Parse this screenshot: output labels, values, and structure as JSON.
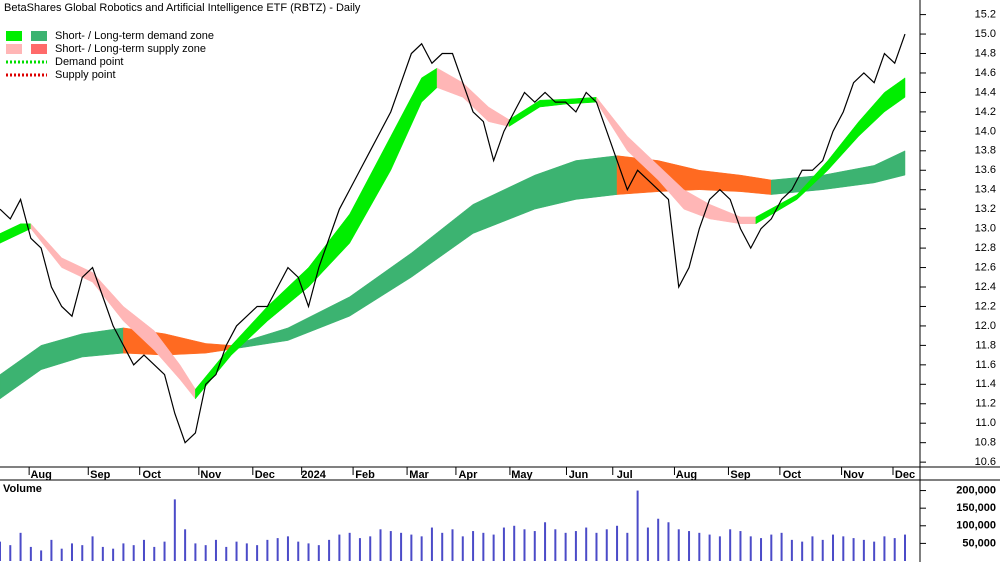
{
  "chart_data": [
    {
      "type": "line",
      "title": "BetaShares Global Robotics and Artificial Intelligence ETF (RBTZ) - Daily",
      "legend": [
        {
          "text": "Short- / Long-term demand zone",
          "colors": [
            "#00ee00",
            "#3cb371"
          ]
        },
        {
          "text": "Short- / Long-term supply zone",
          "colors": [
            "#ffb6b6",
            "#ff6a6a"
          ]
        },
        {
          "text": "Demand point",
          "colors": [
            "#00dd00"
          ]
        },
        {
          "text": "Supply point",
          "colors": [
            "#dd0000"
          ]
        }
      ],
      "xlim": [
        0,
        352
      ],
      "xticks": [
        {
          "value": 16,
          "label": "Aug"
        },
        {
          "value": 39,
          "label": "Sep"
        },
        {
          "value": 59,
          "label": "Oct"
        },
        {
          "value": 82,
          "label": "Nov"
        },
        {
          "value": 103,
          "label": "Dec"
        },
        {
          "value": 122,
          "label": "2024"
        },
        {
          "value": 142,
          "label": "Feb"
        },
        {
          "value": 163,
          "label": "Mar"
        },
        {
          "value": 182,
          "label": "Apr"
        },
        {
          "value": 203,
          "label": "May"
        },
        {
          "value": 225,
          "label": "Jun"
        },
        {
          "value": 243,
          "label": "Jul"
        },
        {
          "value": 267,
          "label": "Aug"
        },
        {
          "value": 288,
          "label": "Sep"
        },
        {
          "value": 308,
          "label": "Oct"
        },
        {
          "value": 332,
          "label": "Nov"
        },
        {
          "value": 352,
          "label": "Dec"
        }
      ],
      "ylim": [
        10.55,
        15.35
      ],
      "yticks": [
        10.6,
        10.8,
        {
          "value": 11,
          "label": "11.0"
        },
        11.2,
        11.4,
        11.6,
        11.8,
        {
          "value": 12,
          "label": "12.0"
        },
        12.2,
        12.4,
        12.6,
        12.8,
        {
          "value": 13,
          "label": "13.0"
        },
        13.2,
        13.4,
        13.6,
        13.8,
        {
          "value": 14,
          "label": "14.0"
        },
        14.2,
        14.4,
        14.6,
        14.8,
        {
          "value": 15,
          "label": "15.0"
        },
        15.2
      ],
      "bands": [
        {
          "color": "#3cb371",
          "x": [
            0,
            16,
            32,
            48
          ],
          "lower": [
            11.25,
            11.55,
            11.68,
            11.72
          ],
          "upper": [
            11.5,
            11.8,
            11.92,
            11.98
          ]
        },
        {
          "color": "#ff6a21",
          "x": [
            48,
            64,
            80,
            90
          ],
          "lower": [
            11.72,
            11.7,
            11.72,
            11.76
          ],
          "upper": [
            11.98,
            11.92,
            11.82,
            11.8
          ]
        },
        {
          "color": "#3cb371",
          "x": [
            90,
            112,
            136,
            160,
            184,
            208,
            224,
            240
          ],
          "lower": [
            11.76,
            11.85,
            12.1,
            12.5,
            12.95,
            13.2,
            13.3,
            13.35
          ],
          "upper": [
            11.8,
            11.98,
            12.3,
            12.75,
            13.25,
            13.55,
            13.7,
            13.75
          ]
        },
        {
          "color": "#ff6a21",
          "x": [
            240,
            256,
            272,
            288,
            300
          ],
          "lower": [
            13.35,
            13.38,
            13.4,
            13.38,
            13.35
          ],
          "upper": [
            13.75,
            13.7,
            13.6,
            13.55,
            13.5
          ]
        },
        {
          "color": "#3cb371",
          "x": [
            300,
            320,
            340,
            352
          ],
          "lower": [
            13.35,
            13.4,
            13.47,
            13.55
          ],
          "upper": [
            13.5,
            13.55,
            13.65,
            13.8
          ]
        },
        {
          "color": "#00ee00",
          "x": [
            0,
            8,
            12
          ],
          "lower": [
            12.85,
            12.95,
            13.0
          ],
          "upper": [
            12.95,
            13.05,
            13.05
          ]
        },
        {
          "color": "#ffb6b6",
          "x": [
            12,
            24,
            36,
            48,
            60,
            70,
            76
          ],
          "lower": [
            13.0,
            12.6,
            12.45,
            12.05,
            11.75,
            11.45,
            11.25
          ],
          "upper": [
            13.05,
            12.7,
            12.55,
            12.2,
            11.95,
            11.6,
            11.35
          ]
        },
        {
          "color": "#00ee00",
          "x": [
            76,
            90,
            104,
            120,
            136,
            152,
            164,
            170
          ],
          "lower": [
            11.25,
            11.7,
            12.05,
            12.4,
            12.85,
            13.6,
            14.3,
            14.45
          ],
          "upper": [
            11.35,
            11.8,
            12.2,
            12.6,
            13.15,
            13.95,
            14.55,
            14.65
          ]
        },
        {
          "color": "#ffb6b6",
          "x": [
            170,
            180,
            190,
            198
          ],
          "lower": [
            14.45,
            14.35,
            14.1,
            14.05
          ],
          "upper": [
            14.65,
            14.5,
            14.25,
            14.12
          ]
        },
        {
          "color": "#00ee00",
          "x": [
            198,
            210,
            220,
            232
          ],
          "lower": [
            14.05,
            14.25,
            14.28,
            14.3
          ],
          "upper": [
            14.12,
            14.32,
            14.33,
            14.35
          ]
        },
        {
          "color": "#ffb6b6",
          "x": [
            232,
            244,
            256,
            266,
            276,
            288,
            294
          ],
          "lower": [
            14.3,
            13.8,
            13.5,
            13.2,
            13.1,
            13.05,
            13.05
          ],
          "upper": [
            14.35,
            13.95,
            13.65,
            13.4,
            13.25,
            13.12,
            13.12
          ]
        },
        {
          "color": "#00ee00",
          "x": [
            294,
            310,
            322,
            334,
            344,
            352
          ],
          "lower": [
            13.05,
            13.3,
            13.6,
            13.95,
            14.2,
            14.35
          ],
          "upper": [
            13.12,
            13.35,
            13.7,
            14.1,
            14.4,
            14.55
          ]
        }
      ],
      "x": [
        0,
        4,
        8,
        12,
        16,
        20,
        24,
        28,
        32,
        36,
        40,
        44,
        48,
        52,
        56,
        60,
        64,
        68,
        72,
        76,
        80,
        84,
        88,
        92,
        96,
        100,
        104,
        108,
        112,
        116,
        120,
        124,
        128,
        132,
        136,
        140,
        144,
        148,
        152,
        156,
        160,
        164,
        168,
        172,
        176,
        180,
        184,
        188,
        192,
        196,
        200,
        204,
        208,
        212,
        216,
        220,
        224,
        228,
        232,
        236,
        240,
        244,
        248,
        252,
        256,
        260,
        264,
        268,
        272,
        276,
        280,
        284,
        288,
        292,
        296,
        300,
        304,
        308,
        312,
        316,
        320,
        324,
        328,
        332,
        336,
        340,
        344,
        348,
        352
      ],
      "series": [
        {
          "color": "#000000",
          "values": [
            13.2,
            13.1,
            13.3,
            12.9,
            12.8,
            12.4,
            12.2,
            12.1,
            12.5,
            12.6,
            12.3,
            12.0,
            11.8,
            11.6,
            11.7,
            11.6,
            11.5,
            11.1,
            10.8,
            10.9,
            11.4,
            11.5,
            11.8,
            12.0,
            12.1,
            12.2,
            12.2,
            12.4,
            12.6,
            12.5,
            12.2,
            12.6,
            12.9,
            13.2,
            13.4,
            13.6,
            13.8,
            14.0,
            14.2,
            14.5,
            14.8,
            14.9,
            14.7,
            14.8,
            14.8,
            14.5,
            14.2,
            14.1,
            13.7,
            14.0,
            14.2,
            14.4,
            14.3,
            14.4,
            14.3,
            14.3,
            14.2,
            14.4,
            14.3,
            14.0,
            13.7,
            13.4,
            13.6,
            13.5,
            13.4,
            13.3,
            12.4,
            12.6,
            13.0,
            13.3,
            13.4,
            13.3,
            13.0,
            12.8,
            13.0,
            13.1,
            13.3,
            13.4,
            13.6,
            13.6,
            13.7,
            14.0,
            14.2,
            14.5,
            14.6,
            14.5,
            14.8,
            14.7,
            15.0
          ]
        }
      ]
    },
    {
      "type": "bar",
      "title": "Volume",
      "color": "#4b4bc8",
      "xlim": [
        0,
        352
      ],
      "ylim": [
        0,
        230000
      ],
      "yticks": [
        {
          "value": 50000,
          "label": "50,000"
        },
        {
          "value": 100000,
          "label": "100,000"
        },
        {
          "value": 150000,
          "label": "150,000"
        },
        {
          "value": 200000,
          "label": "200,000"
        }
      ],
      "x": [
        0,
        4,
        8,
        12,
        16,
        20,
        24,
        28,
        32,
        36,
        40,
        44,
        48,
        52,
        56,
        60,
        64,
        68,
        72,
        76,
        80,
        84,
        88,
        92,
        96,
        100,
        104,
        108,
        112,
        116,
        120,
        124,
        128,
        132,
        136,
        140,
        144,
        148,
        152,
        156,
        160,
        164,
        168,
        172,
        176,
        180,
        184,
        188,
        192,
        196,
        200,
        204,
        208,
        212,
        216,
        220,
        224,
        228,
        232,
        236,
        240,
        244,
        248,
        252,
        256,
        260,
        264,
        268,
        272,
        276,
        280,
        284,
        288,
        292,
        296,
        300,
        304,
        308,
        312,
        316,
        320,
        324,
        328,
        332,
        336,
        340,
        344,
        348,
        352
      ],
      "values": [
        55000,
        45000,
        80000,
        40000,
        30000,
        60000,
        35000,
        50000,
        45000,
        70000,
        40000,
        35000,
        50000,
        45000,
        60000,
        40000,
        55000,
        175000,
        90000,
        50000,
        45000,
        60000,
        40000,
        55000,
        50000,
        45000,
        60000,
        65000,
        70000,
        55000,
        50000,
        45000,
        60000,
        75000,
        80000,
        65000,
        70000,
        90000,
        85000,
        80000,
        75000,
        70000,
        95000,
        80000,
        90000,
        70000,
        85000,
        80000,
        75000,
        95000,
        100000,
        90000,
        85000,
        110000,
        90000,
        80000,
        85000,
        95000,
        80000,
        90000,
        100000,
        80000,
        200000,
        95000,
        120000,
        110000,
        90000,
        85000,
        80000,
        75000,
        70000,
        90000,
        85000,
        70000,
        65000,
        75000,
        80000,
        60000,
        55000,
        70000,
        60000,
        75000,
        70000,
        65000,
        60000,
        55000,
        70000,
        65000,
        75000
      ]
    }
  ]
}
